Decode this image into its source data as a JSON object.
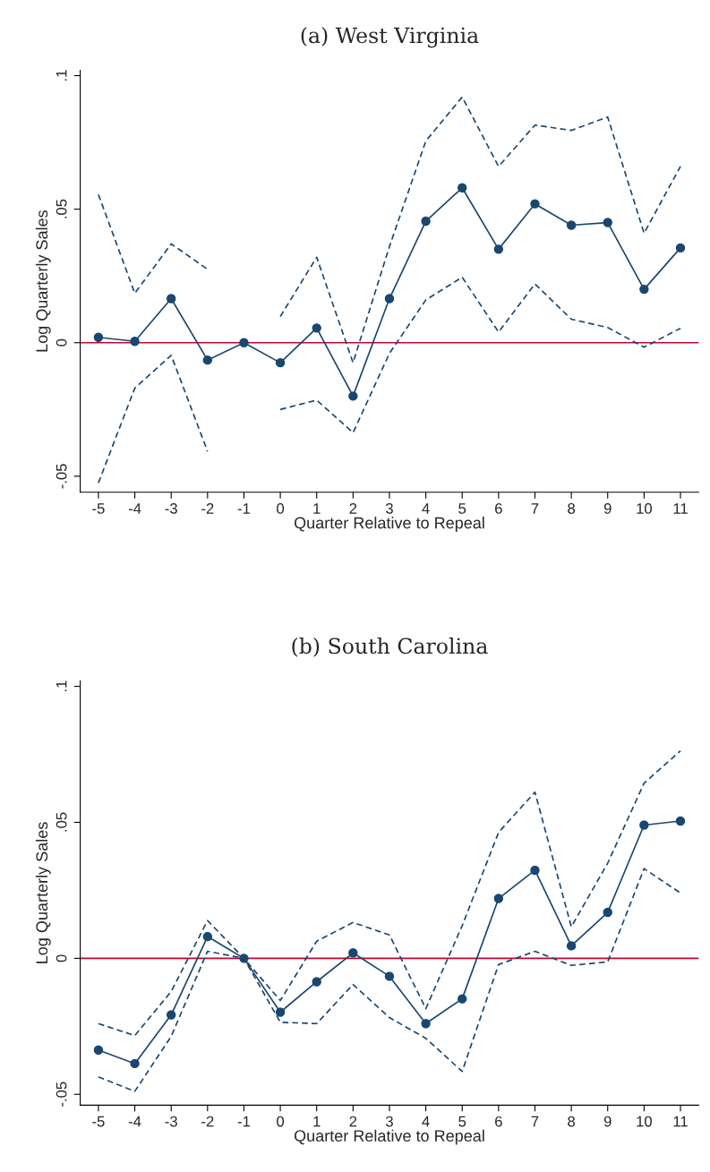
{
  "chart_data": [
    {
      "type": "line",
      "title": "(a) West Virginia",
      "xlabel": "Quarter Relative to Repeal",
      "ylabel": "Log Quarterly Sales",
      "x": [
        -5,
        -4,
        -3,
        -2,
        -1,
        0,
        1,
        2,
        3,
        4,
        5,
        6,
        7,
        8,
        9,
        10,
        11
      ],
      "xlim": [
        -5.5,
        11.5
      ],
      "xticks": [
        -5,
        -4,
        -3,
        -2,
        -1,
        0,
        1,
        2,
        3,
        4,
        5,
        6,
        7,
        8,
        9,
        10,
        11
      ],
      "ylim": [
        -0.056,
        0.102
      ],
      "yticks": [
        {
          "value": -0.05,
          "label": "-.05"
        },
        0,
        {
          "value": 0.05,
          "label": ".05"
        },
        {
          "value": 0.1,
          "label": ".1"
        }
      ],
      "series": [
        {
          "color": "#1a476f",
          "marker": "circle",
          "line_style": "solid",
          "values": [
            0.002,
            0.0005,
            0.0165,
            -0.0065,
            0,
            -0.0075,
            0.0055,
            -0.02,
            0.0165,
            0.0455,
            0.058,
            0.035,
            0.052,
            0.044,
            0.045,
            0.02,
            0.0355
          ]
        },
        {
          "color": "#1a476f",
          "marker": "none",
          "line_style": "dashed",
          "values": [
            0.0555,
            0.0185,
            0.037,
            0.0275,
            null,
            0.0098,
            0.032,
            -0.0075,
            0.036,
            0.0755,
            0.092,
            0.066,
            0.0815,
            0.0795,
            0.0845,
            0.041,
            0.066
          ]
        },
        {
          "color": "#1a476f",
          "marker": "none",
          "line_style": "dashed",
          "values": [
            -0.0525,
            -0.017,
            -0.0047,
            -0.0407,
            null,
            -0.025,
            -0.0215,
            -0.0337,
            -0.004,
            0.016,
            0.0245,
            0.004,
            0.022,
            0.0088,
            0.0057,
            -0.0017,
            0.0054
          ]
        }
      ],
      "ref_lines": [
        {
          "axis": "y",
          "value": 0,
          "color": "#c10534"
        }
      ]
    },
    {
      "type": "line",
      "title": "(b) South Carolina",
      "xlabel": "Quarter Relative to Repeal",
      "ylabel": "Log Quarterly Sales",
      "x": [
        -5,
        -4,
        -3,
        -2,
        -1,
        0,
        1,
        2,
        3,
        4,
        5,
        6,
        7,
        8,
        9,
        10,
        11
      ],
      "xlim": [
        -5.5,
        11.5
      ],
      "xticks": [
        -5,
        -4,
        -3,
        -2,
        -1,
        0,
        1,
        2,
        3,
        4,
        5,
        6,
        7,
        8,
        9,
        10,
        11
      ],
      "ylim": [
        -0.054,
        0.102
      ],
      "yticks": [
        {
          "value": -0.05,
          "label": "-.05"
        },
        0,
        {
          "value": 0.05,
          "label": ".05"
        },
        {
          "value": 0.1,
          "label": ".1"
        }
      ],
      "series": [
        {
          "color": "#1a476f",
          "marker": "circle",
          "line_style": "solid",
          "values": [
            -0.0337,
            -0.0387,
            -0.0208,
            0.008,
            0,
            -0.0198,
            -0.0086,
            0.002,
            -0.0066,
            -0.024,
            -0.0149,
            0.022,
            0.0324,
            0.0046,
            0.0169,
            0.049,
            0.0505
          ]
        },
        {
          "color": "#1a476f",
          "marker": "none",
          "line_style": "dashed",
          "values": [
            -0.024,
            -0.0284,
            -0.0122,
            0.0139,
            0,
            -0.0155,
            0.0063,
            0.0132,
            0.0086,
            -0.0185,
            0.012,
            0.0463,
            0.0611,
            0.0116,
            0.035,
            0.0644,
            0.0763
          ]
        },
        {
          "color": "#1a476f",
          "marker": "none",
          "line_style": "dashed",
          "values": [
            -0.0436,
            -0.0489,
            -0.0287,
            0.0026,
            0,
            -0.0235,
            -0.024,
            -0.0096,
            -0.0218,
            -0.0294,
            -0.0416,
            -0.0023,
            0.0026,
            -0.0026,
            -0.0013,
            0.033,
            0.024
          ]
        }
      ],
      "ref_lines": [
        {
          "axis": "y",
          "value": 0,
          "color": "#c10534"
        }
      ]
    }
  ]
}
